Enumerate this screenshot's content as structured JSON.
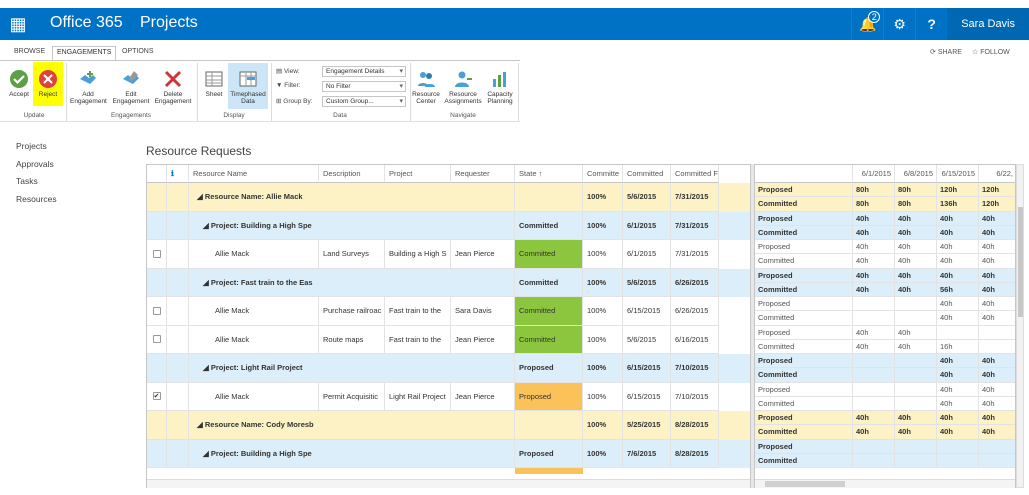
{
  "suitebar": {
    "waffle": "▦",
    "brand": "Office 365",
    "site": "Projects",
    "notif_count": "2",
    "user": "Sara Davis"
  },
  "tabs": {
    "browse": "BROWSE",
    "engagements": "ENGAGEMENTS",
    "options": "OPTIONS",
    "share": "SHARE",
    "follow": "FOLLOW"
  },
  "ribbon": {
    "accept": "Accept",
    "reject": "Reject",
    "add1": "Add",
    "add2": "Engagement",
    "edit1": "Edit",
    "edit2": "Engagement",
    "delete1": "Delete",
    "delete2": "Engagement",
    "sheet": "Sheet",
    "timephased1": "Timephased",
    "timephased2": "Data",
    "view_label": "View:",
    "filter_label": "Filter:",
    "groupby_label": "Group By:",
    "view_value": "Engagement Details",
    "filter_value": "No Filter",
    "groupby_value": "Custom Group...",
    "rc1": "Resource",
    "rc2": "Center",
    "ra1": "Resource",
    "ra2": "Assignments",
    "cp1": "Capacity",
    "cp2": "Planning",
    "g_update": "Update",
    "g_engagements": "Engagements",
    "g_display": "Display",
    "g_data": "Data",
    "g_navigate": "Navigate"
  },
  "nav": [
    "Projects",
    "Approvals",
    "Tasks",
    "Resources"
  ],
  "page_title": "Resource Requests",
  "grid": {
    "headers": [
      "Resource Name",
      "Description",
      "Project",
      "Requester",
      "State ↑",
      "Committe",
      "Committed",
      "Committed F"
    ],
    "rows": [
      {
        "kind": "res",
        "name": "◢ Resource Name: Allie Mack",
        "state": "",
        "pct": "100%",
        "start": "5/6/2015",
        "finish": "7/31/2015"
      },
      {
        "kind": "proj",
        "name": "◢ Project: Building a High Spe",
        "state": "Committed",
        "pct": "100%",
        "start": "6/1/2015",
        "finish": "7/31/2015"
      },
      {
        "kind": "item",
        "name": "Allie Mack",
        "desc": "Land Surveys",
        "project": "Building a High S",
        "req": "Jean Pierce",
        "state": "Committed",
        "pct": "100%",
        "start": "6/1/2015",
        "finish": "7/31/2015",
        "checked": ""
      },
      {
        "kind": "proj",
        "name": "◢ Project: Fast train to the Eas",
        "state": "Committed",
        "pct": "100%",
        "start": "5/6/2015",
        "finish": "6/26/2015"
      },
      {
        "kind": "item",
        "name": "Allie Mack",
        "desc": "Purchase railroac",
        "project": "Fast train to the",
        "req": "Sara Davis",
        "state": "Committed",
        "pct": "100%",
        "start": "6/15/2015",
        "finish": "6/26/2015",
        "checked": ""
      },
      {
        "kind": "item",
        "name": "Allie Mack",
        "desc": "Route maps",
        "project": "Fast train to the",
        "req": "Jean Pierce",
        "state": "Committed",
        "pct": "100%",
        "start": "5/6/2015",
        "finish": "6/16/2015",
        "checked": ""
      },
      {
        "kind": "proj",
        "name": "◢ Project: Light Rail Project",
        "state": "Proposed",
        "pct": "100%",
        "start": "6/15/2015",
        "finish": "7/10/2015"
      },
      {
        "kind": "item",
        "name": "Allie Mack",
        "desc": "Permit Acquisitic",
        "project": "Light Rail Project",
        "req": "Jean Pierce",
        "state": "Proposed",
        "pct": "100%",
        "start": "6/15/2015",
        "finish": "7/10/2015",
        "checked": "✔"
      },
      {
        "kind": "res",
        "name": "◢ Resource Name: Cody Moresb",
        "state": "",
        "pct": "100%",
        "start": "5/25/2015",
        "finish": "8/28/2015"
      },
      {
        "kind": "proj",
        "name": "◢ Project: Building a High Spe",
        "state": "Proposed",
        "pct": "100%",
        "start": "7/6/2015",
        "finish": "8/28/2015"
      }
    ]
  },
  "timeline": {
    "headers": [
      "6/1/2015",
      "6/8/2015",
      "6/15/2015",
      "6/22,"
    ],
    "rows": [
      {
        "cls": "res",
        "bold": true,
        "label": "Proposed",
        "v": [
          "80h",
          "80h",
          "120h",
          "120h"
        ]
      },
      {
        "cls": "res",
        "bold": true,
        "label": "Committed",
        "v": [
          "80h",
          "80h",
          "136h",
          "120h"
        ]
      },
      {
        "cls": "proj",
        "bold": true,
        "label": "Proposed",
        "v": [
          "40h",
          "40h",
          "40h",
          "40h"
        ]
      },
      {
        "cls": "proj",
        "bold": true,
        "label": "Committed",
        "v": [
          "40h",
          "40h",
          "40h",
          "40h"
        ]
      },
      {
        "cls": "",
        "bold": false,
        "label": "Proposed",
        "v": [
          "40h",
          "40h",
          "40h",
          "40h"
        ]
      },
      {
        "cls": "",
        "bold": false,
        "label": "Committed",
        "v": [
          "40h",
          "40h",
          "40h",
          "40h"
        ]
      },
      {
        "cls": "proj",
        "bold": true,
        "label": "Proposed",
        "v": [
          "40h",
          "40h",
          "40h",
          "40h"
        ]
      },
      {
        "cls": "proj",
        "bold": true,
        "label": "Committed",
        "v": [
          "40h",
          "40h",
          "56h",
          "40h"
        ]
      },
      {
        "cls": "",
        "bold": false,
        "label": "Proposed",
        "v": [
          "",
          "",
          "40h",
          "40h"
        ]
      },
      {
        "cls": "",
        "bold": false,
        "label": "Committed",
        "v": [
          "",
          "",
          "40h",
          "40h"
        ]
      },
      {
        "cls": "",
        "bold": false,
        "label": "Proposed",
        "v": [
          "40h",
          "40h",
          "",
          ""
        ]
      },
      {
        "cls": "",
        "bold": false,
        "label": "Committed",
        "v": [
          "40h",
          "40h",
          "16h",
          ""
        ]
      },
      {
        "cls": "proj",
        "bold": true,
        "label": "Proposed",
        "v": [
          "",
          "",
          "40h",
          "40h"
        ]
      },
      {
        "cls": "proj",
        "bold": true,
        "label": "Committed",
        "v": [
          "",
          "",
          "40h",
          "40h"
        ]
      },
      {
        "cls": "",
        "bold": false,
        "label": "Proposed",
        "v": [
          "",
          "",
          "40h",
          "40h"
        ]
      },
      {
        "cls": "",
        "bold": false,
        "label": "Committed",
        "v": [
          "",
          "",
          "40h",
          "40h"
        ]
      },
      {
        "cls": "res",
        "bold": true,
        "label": "Proposed",
        "v": [
          "40h",
          "40h",
          "40h",
          "40h"
        ]
      },
      {
        "cls": "res",
        "bold": true,
        "label": "Committed",
        "v": [
          "40h",
          "40h",
          "40h",
          "40h"
        ]
      },
      {
        "cls": "proj",
        "bold": true,
        "label": "Proposed",
        "v": [
          "",
          "",
          "",
          ""
        ]
      },
      {
        "cls": "proj",
        "bold": true,
        "label": "Committed",
        "v": [
          "",
          "",
          "",
          ""
        ]
      }
    ]
  },
  "colors": {
    "suitebar": "#0072c6",
    "committed": "#8cc63f",
    "proposed": "#fbc25a",
    "resource_row": "#fcf2c6",
    "project_row": "#dbeef9",
    "reject_highlight": "#ffff00"
  }
}
